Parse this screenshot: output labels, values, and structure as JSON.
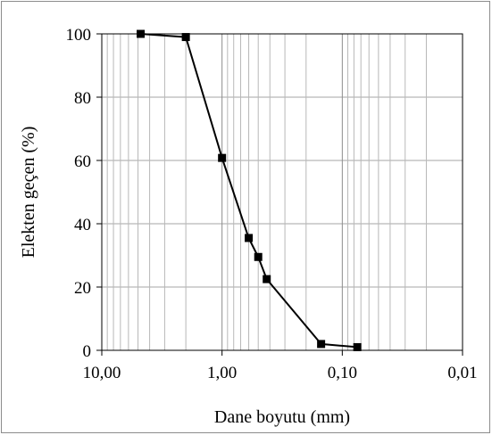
{
  "chart_data": {
    "type": "line",
    "title": "",
    "xlabel": "Dane boyutu (mm)",
    "ylabel": "Elekten geçen (%)",
    "x_scale": "log",
    "x_reversed": true,
    "xlim": [
      10,
      0.01
    ],
    "ylim": [
      0,
      100
    ],
    "grid": true,
    "legend": "none",
    "x_tick_labels": [
      "10,00",
      "1,00",
      "0,10",
      "0,01"
    ],
    "y_tick_labels": [
      "0",
      "20",
      "40",
      "60",
      "80",
      "100"
    ],
    "x_tick_values": [
      10,
      1,
      0.1,
      0.01
    ],
    "y_tick_values": [
      0,
      20,
      40,
      60,
      80,
      100
    ],
    "series": [
      {
        "marker": "square",
        "color": "#000000",
        "x": [
          4.75,
          2.0,
          1.0,
          0.6,
          0.5,
          0.425,
          0.15,
          0.075
        ],
        "y": [
          100,
          99,
          60.8,
          35.5,
          29.5,
          22.5,
          2,
          1
        ]
      }
    ]
  }
}
